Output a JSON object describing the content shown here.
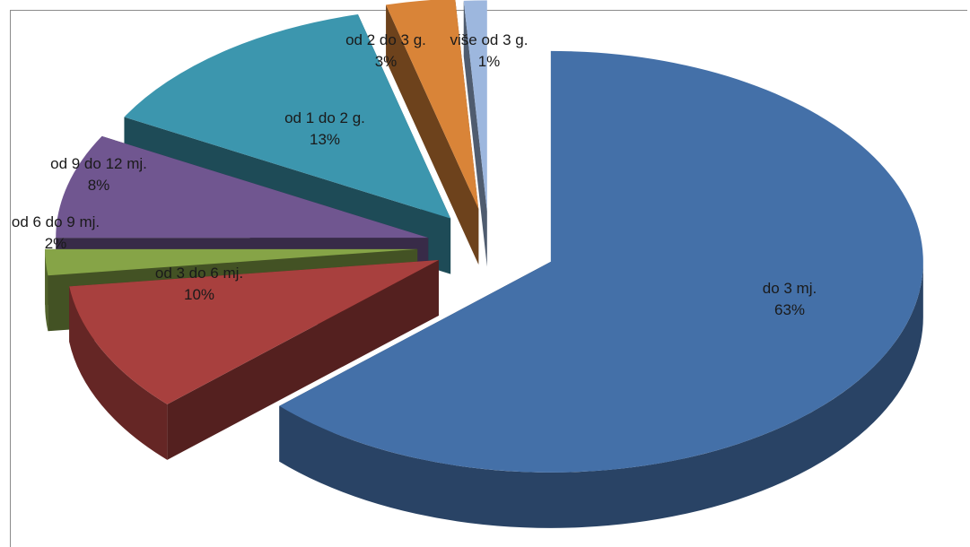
{
  "chart_data": {
    "type": "pie",
    "style": "3d-exploded",
    "title": "",
    "slices": [
      {
        "label": "do 3 mj.",
        "value": 63,
        "value_label": "63%",
        "color": "#4470A8",
        "exploded": true
      },
      {
        "label": "od 3 do 6 mj.",
        "value": 10,
        "value_label": "10%",
        "color": "#A8403E",
        "exploded": true
      },
      {
        "label": "od 6 do 9 mj.",
        "value": 2,
        "value_label": "2%",
        "color": "#86A447",
        "exploded": true
      },
      {
        "label": "od 9 do 12 mj.",
        "value": 8,
        "value_label": "8%",
        "color": "#705690",
        "exploded": true
      },
      {
        "label": "od 1 do 2 g.",
        "value": 13,
        "value_label": "13%",
        "color": "#3C96AE",
        "exploded": true
      },
      {
        "label": "od 2 do 3 g.",
        "value": 3,
        "value_label": "3%",
        "color": "#D98438",
        "exploded": true
      },
      {
        "label": "više od 3 g.",
        "value": 1,
        "value_label": "1%",
        "color": "#9DB7DE",
        "exploded": true
      }
    ],
    "legend": "none",
    "grid": false
  }
}
